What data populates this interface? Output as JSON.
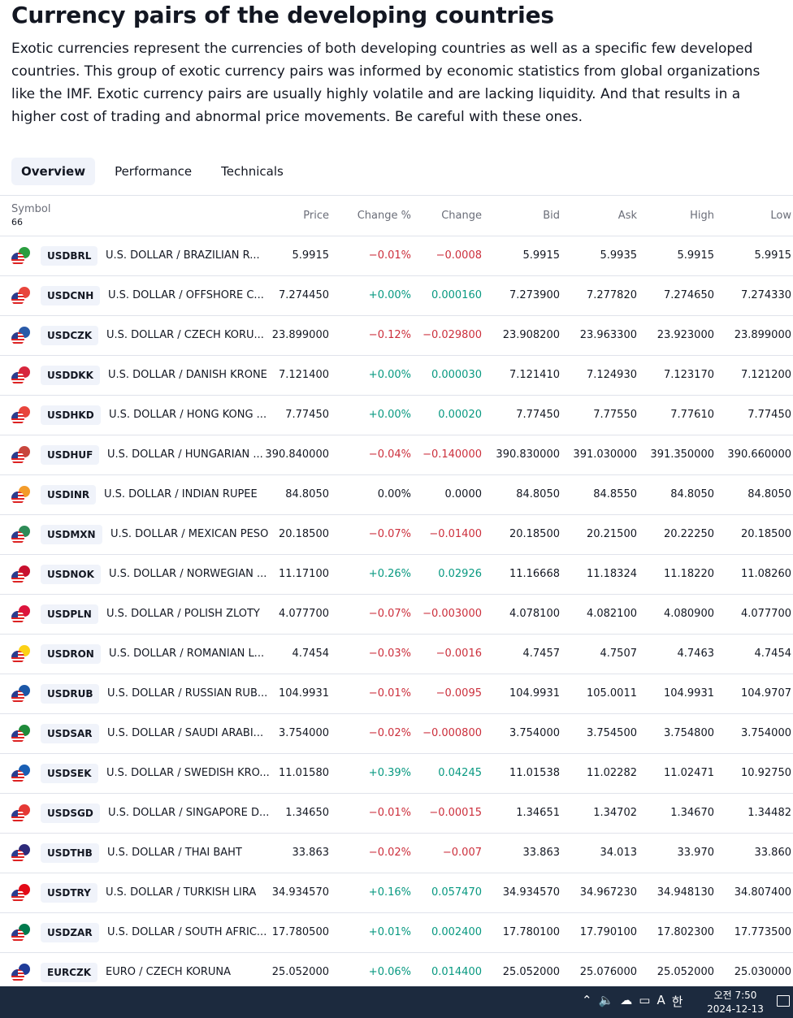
{
  "page": {
    "title": "Currency pairs of the developing countries",
    "description": "Exotic currencies represent the currencies of both developing countries as well as a specific few developed countries. This group of exotic currency pairs was informed by economic statistics from global organizations like the IMF. Exotic currency pairs are usually highly volatile and are lacking liquidity. And that results in a higher cost of trading and abnormal price movements. Be careful with these ones."
  },
  "tabs": [
    {
      "label": "Overview",
      "active": true
    },
    {
      "label": "Performance",
      "active": false
    },
    {
      "label": "Technicals",
      "active": false
    }
  ],
  "table": {
    "symbol_header": "Symbol",
    "count": "66",
    "columns": [
      "Price",
      "Change %",
      "Change",
      "Bid",
      "Ask",
      "High",
      "Low"
    ],
    "rows": [
      {
        "flag": "#2a9d3f",
        "ticker": "USDBRL",
        "name": "U.S. DOLLAR / BRAZILIAN R...",
        "price": "5.9915",
        "chp": "−0.01%",
        "ch": "−0.0008",
        "dir": "neg",
        "bid": "5.9915",
        "ask": "5.9935",
        "high": "5.9915",
        "low": "5.9915"
      },
      {
        "flag": "#e8453c",
        "ticker": "USDCNH",
        "name": "U.S. DOLLAR / OFFSHORE C...",
        "price": "7.274450",
        "chp": "+0.00%",
        "ch": "0.000160",
        "dir": "pos",
        "bid": "7.273900",
        "ask": "7.277820",
        "high": "7.274650",
        "low": "7.274330"
      },
      {
        "flag": "#2a5aa8",
        "ticker": "USDCZK",
        "name": "U.S. DOLLAR / CZECH KORU...",
        "price": "23.899000",
        "chp": "−0.12%",
        "ch": "−0.029800",
        "dir": "neg",
        "bid": "23.908200",
        "ask": "23.963300",
        "high": "23.923000",
        "low": "23.899000"
      },
      {
        "flag": "#d7263d",
        "ticker": "USDDKK",
        "name": "U.S. DOLLAR / DANISH KRONE",
        "price": "7.121400",
        "chp": "+0.00%",
        "ch": "0.000030",
        "dir": "pos",
        "bid": "7.121410",
        "ask": "7.124930",
        "high": "7.123170",
        "low": "7.121200"
      },
      {
        "flag": "#e8453c",
        "ticker": "USDHKD",
        "name": "U.S. DOLLAR / HONG KONG ...",
        "price": "7.77450",
        "chp": "+0.00%",
        "ch": "0.00020",
        "dir": "pos",
        "bid": "7.77450",
        "ask": "7.77550",
        "high": "7.77610",
        "low": "7.77450"
      },
      {
        "flag": "#c8463d",
        "ticker": "USDHUF",
        "name": "U.S. DOLLAR / HUNGARIAN ...",
        "price": "390.840000",
        "chp": "−0.04%",
        "ch": "−0.140000",
        "dir": "neg",
        "bid": "390.830000",
        "ask": "391.030000",
        "high": "391.350000",
        "low": "390.660000"
      },
      {
        "flag": "#f39c2b",
        "ticker": "USDINR",
        "name": "U.S. DOLLAR / INDIAN RUPEE",
        "price": "84.8050",
        "chp": "0.00%",
        "ch": "0.0000",
        "dir": "neutral",
        "bid": "84.8050",
        "ask": "84.8550",
        "high": "84.8050",
        "low": "84.8050"
      },
      {
        "flag": "#2e8b57",
        "ticker": "USDMXN",
        "name": "U.S. DOLLAR / MEXICAN PESO",
        "price": "20.18500",
        "chp": "−0.07%",
        "ch": "−0.01400",
        "dir": "neg",
        "bid": "20.18500",
        "ask": "20.21500",
        "high": "20.22250",
        "low": "20.18500"
      },
      {
        "flag": "#c8102e",
        "ticker": "USDNOK",
        "name": "U.S. DOLLAR / NORWEGIAN ...",
        "price": "11.17100",
        "chp": "+0.26%",
        "ch": "0.02926",
        "dir": "pos",
        "bid": "11.16668",
        "ask": "11.18324",
        "high": "11.18220",
        "low": "11.08260"
      },
      {
        "flag": "#dc143c",
        "ticker": "USDPLN",
        "name": "U.S. DOLLAR / POLISH ZLOTY",
        "price": "4.077700",
        "chp": "−0.07%",
        "ch": "−0.003000",
        "dir": "neg",
        "bid": "4.078100",
        "ask": "4.082100",
        "high": "4.080900",
        "low": "4.077700"
      },
      {
        "flag": "#fcd116",
        "ticker": "USDRON",
        "name": "U.S. DOLLAR / ROMANIAN L...",
        "price": "4.7454",
        "chp": "−0.03%",
        "ch": "−0.0016",
        "dir": "neg",
        "bid": "4.7457",
        "ask": "4.7507",
        "high": "4.7463",
        "low": "4.7454"
      },
      {
        "flag": "#1c57a7",
        "ticker": "USDRUB",
        "name": "U.S. DOLLAR / RUSSIAN RUB...",
        "price": "104.9931",
        "chp": "−0.01%",
        "ch": "−0.0095",
        "dir": "neg",
        "bid": "104.9931",
        "ask": "105.0011",
        "high": "104.9931",
        "low": "104.9707"
      },
      {
        "flag": "#1f8a3a",
        "ticker": "USDSAR",
        "name": "U.S. DOLLAR / SAUDI ARABI...",
        "price": "3.754000",
        "chp": "−0.02%",
        "ch": "−0.000800",
        "dir": "neg",
        "bid": "3.754000",
        "ask": "3.754500",
        "high": "3.754800",
        "low": "3.754000"
      },
      {
        "flag": "#1a5fb4",
        "ticker": "USDSEK",
        "name": "U.S. DOLLAR / SWEDISH KRO...",
        "price": "11.01580",
        "chp": "+0.39%",
        "ch": "0.04245",
        "dir": "pos",
        "bid": "11.01538",
        "ask": "11.02282",
        "high": "11.02471",
        "low": "10.92750"
      },
      {
        "flag": "#e53935",
        "ticker": "USDSGD",
        "name": "U.S. DOLLAR / SINGAPORE D...",
        "price": "1.34650",
        "chp": "−0.01%",
        "ch": "−0.00015",
        "dir": "neg",
        "bid": "1.34651",
        "ask": "1.34702",
        "high": "1.34670",
        "low": "1.34482"
      },
      {
        "flag": "#2d2a7a",
        "ticker": "USDTHB",
        "name": "U.S. DOLLAR / THAI BAHT",
        "price": "33.863",
        "chp": "−0.02%",
        "ch": "−0.007",
        "dir": "neg",
        "bid": "33.863",
        "ask": "34.013",
        "high": "33.970",
        "low": "33.860"
      },
      {
        "flag": "#e30a17",
        "ticker": "USDTRY",
        "name": "U.S. DOLLAR / TURKISH LIRA",
        "price": "34.934570",
        "chp": "+0.16%",
        "ch": "0.057470",
        "dir": "pos",
        "bid": "34.934570",
        "ask": "34.967230",
        "high": "34.948130",
        "low": "34.807400"
      },
      {
        "flag": "#007a4d",
        "ticker": "USDZAR",
        "name": "U.S. DOLLAR / SOUTH AFRIC...",
        "price": "17.780500",
        "chp": "+0.01%",
        "ch": "0.002400",
        "dir": "pos",
        "bid": "17.780100",
        "ask": "17.790100",
        "high": "17.802300",
        "low": "17.773500"
      },
      {
        "flag": "#1f3c99",
        "ticker": "EURCZK",
        "name": "EURO / CZECH KORUNA",
        "price": "25.052000",
        "chp": "+0.06%",
        "ch": "0.014400",
        "dir": "pos",
        "bid": "25.052000",
        "ask": "25.076000",
        "high": "25.052000",
        "low": "25.030000"
      }
    ]
  },
  "taskbar": {
    "ime": "A",
    "ime2": "한",
    "time": "오전 7:50",
    "date": "2024-12-13"
  }
}
